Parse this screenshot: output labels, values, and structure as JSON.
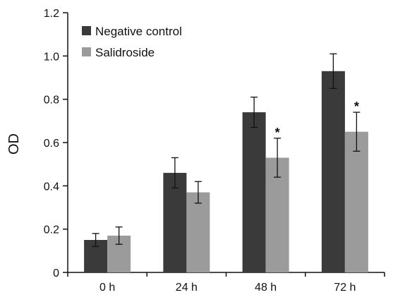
{
  "chart_data": {
    "type": "bar",
    "categories": [
      "0 h",
      "24 h",
      "48 h",
      "72 h"
    ],
    "series": [
      {
        "name": "Negative control",
        "color": "#3a3a3a",
        "values": [
          0.15,
          0.46,
          0.74,
          0.93
        ],
        "errors": [
          0.03,
          0.07,
          0.07,
          0.08
        ],
        "significance": [
          "",
          "",
          "",
          ""
        ]
      },
      {
        "name": "Salidroside",
        "color": "#9b9b9b",
        "values": [
          0.17,
          0.37,
          0.53,
          0.65
        ],
        "errors": [
          0.04,
          0.05,
          0.09,
          0.09
        ],
        "significance": [
          "",
          "",
          "*",
          "*"
        ]
      }
    ],
    "title": "",
    "xlabel": "",
    "ylabel": "OD",
    "ylim": [
      0,
      1.2
    ],
    "yticks": [
      "0",
      "0.2",
      "0.4",
      "0.6",
      "0.8",
      "1.0",
      "1.2"
    ],
    "grid": false,
    "legend_position": "top-left"
  }
}
